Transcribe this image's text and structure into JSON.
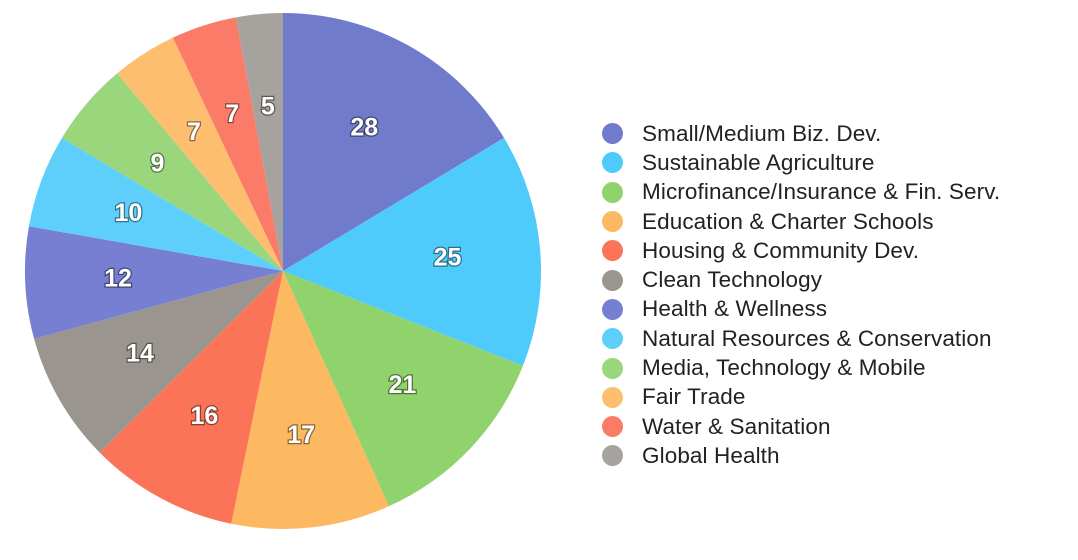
{
  "chart_data": {
    "type": "pie",
    "title": "",
    "legend_position": "right",
    "slices": [
      {
        "label": "Small/Medium Biz. Dev.",
        "value": 28,
        "color": "#717bcc"
      },
      {
        "label": "Sustainable Agriculture",
        "value": 25,
        "color": "#4ecbfb"
      },
      {
        "label": "Microfinance/Insurance & Fin. Serv.",
        "value": 21,
        "color": "#90d26c"
      },
      {
        "label": "Education & Charter Schools",
        "value": 17,
        "color": "#fdb862"
      },
      {
        "label": "Housing & Community Dev.",
        "value": 16,
        "color": "#fb7458"
      },
      {
        "label": "Clean Technology",
        "value": 14,
        "color": "#9b9590"
      },
      {
        "label": "Health & Wellness",
        "value": 12,
        "color": "#777fd2"
      },
      {
        "label": "Natural Resources & Conservation",
        "value": 10,
        "color": "#5ecffb"
      },
      {
        "label": "Media, Technology & Mobile",
        "value": 9,
        "color": "#9ad67c"
      },
      {
        "label": "Fair Trade",
        "value": 7,
        "color": "#fdbe70"
      },
      {
        "label": "Water & Sanitation",
        "value": 7,
        "color": "#fa7c68"
      },
      {
        "label": "Global Health",
        "value": 5,
        "color": "#a6a29e"
      }
    ]
  }
}
